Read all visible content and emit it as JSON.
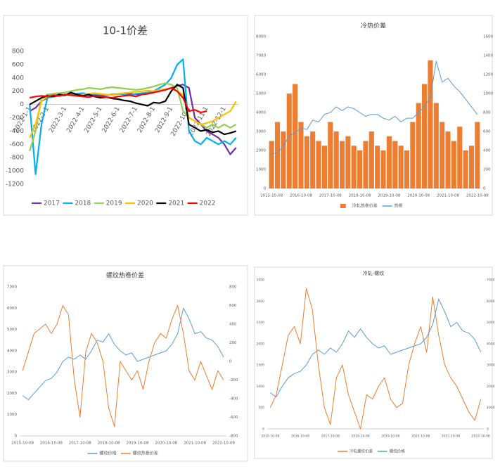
{
  "chart_data": [
    {
      "type": "line",
      "title": "10-1价差",
      "categories": [
        "2022-1-1",
        null,
        null,
        "2022-2-1",
        null,
        null,
        "2022-3-1",
        null,
        null,
        "2022-4-1",
        null,
        null,
        "2022-5-1",
        null,
        null,
        "2022-6-1",
        null,
        null,
        "2022-7-1",
        null,
        null,
        "2022-8-1",
        null,
        null,
        "2022-9-1",
        null,
        null,
        "2022-10-1",
        null,
        null,
        "2022-11-1",
        null,
        null,
        "2022-12-1",
        null,
        null
      ],
      "ylim": [
        -1200,
        800
      ],
      "yticks": [
        -1200,
        -1000,
        -800,
        -600,
        -400,
        -200,
        0,
        200,
        400,
        600,
        800
      ],
      "grid": false,
      "legend": "bottom",
      "series": [
        {
          "name": "2017",
          "color": "#7030a0",
          "values": [
            -100,
            -50,
            50,
            100,
            120,
            130,
            140,
            150,
            160,
            150,
            140,
            150,
            130,
            140,
            150,
            160,
            170,
            160,
            150,
            160,
            170,
            180,
            200,
            220,
            250,
            280,
            300,
            250,
            -200,
            -300,
            -400,
            -450,
            -500,
            -600,
            -750,
            -650
          ]
        },
        {
          "name": "2018",
          "color": "#00b0f0",
          "values": [
            0,
            -1050,
            -300,
            100,
            120,
            130,
            140,
            150,
            160,
            170,
            150,
            160,
            150,
            140,
            150,
            160,
            150,
            140,
            160,
            170,
            180,
            200,
            250,
            300,
            400,
            600,
            680,
            -400,
            -550,
            -600,
            -500,
            -550,
            -600,
            -550,
            -600,
            -500
          ]
        },
        {
          "name": "2019",
          "color": "#92d050",
          "values": [
            -700,
            -400,
            100,
            150,
            160,
            170,
            180,
            200,
            220,
            230,
            250,
            240,
            230,
            250,
            260,
            250,
            240,
            230,
            220,
            230,
            250,
            270,
            300,
            320,
            300,
            250,
            -100,
            -200,
            -250,
            -300,
            -350,
            -300,
            -350,
            -300,
            -350,
            -300
          ]
        },
        {
          "name": "2020",
          "color": "#ffc000",
          "values": [
            -500,
            -300,
            50,
            120,
            130,
            140,
            150,
            140,
            130,
            150,
            160,
            170,
            160,
            150,
            140,
            160,
            170,
            180,
            190,
            200,
            210,
            200,
            220,
            230,
            240,
            200,
            150,
            -200,
            -250,
            -300,
            -280,
            -250,
            -200,
            -150,
            -100,
            50
          ]
        },
        {
          "name": "2021",
          "color": "#000000",
          "values": [
            0,
            50,
            100,
            130,
            120,
            150,
            140,
            180,
            150,
            130,
            150,
            120,
            100,
            110,
            90,
            80,
            60,
            50,
            20,
            0,
            -20,
            30,
            20,
            50,
            200,
            300,
            250,
            -300,
            -350,
            -400,
            -380,
            -420,
            -400,
            -450,
            -430,
            -400
          ]
        },
        {
          "name": "2022",
          "color": "#ff0000",
          "values": [
            100,
            120,
            130,
            120,
            140,
            130,
            150,
            140,
            130,
            120,
            110,
            130,
            120,
            110,
            100,
            120,
            130,
            140,
            120,
            150,
            160,
            180,
            200,
            220,
            250,
            200,
            100,
            -100,
            -80,
            -120,
            -100,
            null,
            null,
            null,
            null,
            null
          ]
        }
      ]
    },
    {
      "type": "combo",
      "title": "冷热价差",
      "categories": [
        "2015-10-08",
        null,
        null,
        null,
        null,
        "2016-10-08",
        null,
        null,
        null,
        null,
        "2017-10-08",
        null,
        null,
        null,
        null,
        "2018-10-08",
        null,
        null,
        null,
        null,
        "2019-10-08",
        null,
        null,
        null,
        null,
        "2020-10-08",
        null,
        null,
        null,
        null,
        "2021-10-08",
        null,
        null,
        null,
        null,
        "2022-10-08"
      ],
      "ylim": [
        0,
        8000
      ],
      "yticks": [
        0,
        1000,
        2000,
        3000,
        4000,
        5000,
        6000,
        7000,
        8000
      ],
      "y2lim": [
        0,
        1600
      ],
      "y2ticks": [
        0,
        200,
        400,
        600,
        800,
        1000,
        1200,
        1400,
        1600
      ],
      "grid": false,
      "legend": "bottom",
      "series": [
        {
          "name": "冷轧热卷价差",
          "kind": "bar",
          "axis": "y2",
          "color": "#ed7d31",
          "values": [
            500,
            700,
            600,
            1000,
            1100,
            700,
            550,
            600,
            500,
            450,
            700,
            600,
            500,
            550,
            450,
            400,
            500,
            600,
            450,
            400,
            550,
            500,
            450,
            400,
            700,
            900,
            1100,
            1350,
            900,
            700,
            600,
            500,
            650,
            400,
            450,
            700
          ]
        },
        {
          "name": "热卷",
          "kind": "line",
          "color": "#5b9bd5",
          "values": [
            1800,
            1900,
            2200,
            2800,
            2900,
            3200,
            3100,
            3600,
            3500,
            3900,
            4000,
            4300,
            4100,
            4300,
            4200,
            4000,
            3800,
            3900,
            3900,
            3700,
            3600,
            3800,
            3500,
            3700,
            3700,
            4000,
            4300,
            4800,
            6700,
            5600,
            5800,
            5400,
            5100,
            4700,
            4300,
            3900
          ]
        }
      ]
    },
    {
      "type": "line",
      "title": "螺纹热卷价差",
      "categories": [
        "2015-10-08",
        null,
        null,
        null,
        null,
        "2016-10-08",
        null,
        null,
        null,
        null,
        "2017-10-08",
        null,
        null,
        null,
        null,
        "2018-10-08",
        null,
        null,
        null,
        null,
        "2019-10-08",
        null,
        null,
        null,
        null,
        "2020-10-08",
        null,
        null,
        null,
        null,
        "2021-10-08",
        null,
        null,
        null,
        null,
        "2022-10-08"
      ],
      "ylim": [
        0,
        7000
      ],
      "yticks": [
        0,
        1000,
        2000,
        3000,
        4000,
        5000,
        6000,
        7000
      ],
      "y2lim": [
        -800,
        800
      ],
      "y2ticks": [
        -800,
        -600,
        -400,
        -200,
        0,
        200,
        400,
        600,
        800
      ],
      "grid": false,
      "legend": "bottom",
      "series": [
        {
          "name": "螺纹价格",
          "color": "#5b9bd5",
          "values": [
            1900,
            1700,
            2000,
            2300,
            2600,
            2700,
            3000,
            3500,
            3700,
            3600,
            3800,
            3600,
            4000,
            4500,
            4400,
            4800,
            4300,
            4000,
            3800,
            3900,
            3500,
            3600,
            3700,
            3800,
            3900,
            4000,
            4300,
            4800,
            6000,
            5500,
            4800,
            4900,
            4600,
            4500,
            4200,
            3700
          ]
        },
        {
          "name": "螺纹热卷价差",
          "axis": "y2",
          "color": "#ed7d31",
          "values": [
            -100,
            100,
            300,
            350,
            400,
            300,
            400,
            600,
            500,
            -200,
            -600,
            100,
            300,
            200,
            0,
            -500,
            -700,
            0,
            -100,
            -200,
            -100,
            -300,
            0,
            200,
            300,
            250,
            450,
            600,
            300,
            -100,
            -200,
            0,
            -150,
            -300,
            -100,
            -200
          ]
        }
      ]
    },
    {
      "type": "line",
      "title": "冷轧-螺纹",
      "categories": [
        "2015-10-08",
        null,
        null,
        null,
        null,
        "2016-10-08",
        null,
        null,
        null,
        null,
        "2017-10-08",
        null,
        null,
        null,
        null,
        "2018-10-08",
        null,
        null,
        null,
        null,
        "2019-10-08",
        null,
        null,
        null,
        null,
        "2020-10-08",
        null,
        null,
        null,
        null,
        "2021-10-08",
        null,
        null,
        null,
        null,
        "2022-10-08"
      ],
      "ylim": [
        0,
        3500
      ],
      "yticks": [
        0,
        500,
        1000,
        1500,
        2000,
        2500,
        3000,
        3500
      ],
      "y2lim": [
        0,
        7000
      ],
      "y2ticks": [
        0,
        1000,
        2000,
        3000,
        4000,
        5000,
        6000,
        7000
      ],
      "grid": false,
      "legend": "bottom",
      "series": [
        {
          "name": "冷轧螺纹价差",
          "color": "#ed7d31",
          "values": [
            500,
            800,
            1500,
            2200,
            2400,
            2000,
            3300,
            2800,
            1500,
            500,
            100,
            1200,
            1500,
            800,
            400,
            0,
            800,
            700,
            1000,
            1200,
            700,
            500,
            600,
            1500,
            2000,
            2400,
            1800,
            3100,
            2200,
            1500,
            1200,
            1000,
            700,
            400,
            200,
            700
          ]
        },
        {
          "name": "螺纹价格",
          "axis": "y2",
          "color": "#5b9bd5",
          "values": [
            1700,
            1500,
            2000,
            2400,
            2600,
            2700,
            3000,
            3500,
            3700,
            3500,
            3800,
            3600,
            4000,
            4600,
            4300,
            4700,
            4300,
            4000,
            3800,
            3900,
            3500,
            3600,
            3700,
            3800,
            3900,
            4000,
            4300,
            4900,
            6100,
            5500,
            4800,
            5000,
            4600,
            4500,
            4200,
            3600
          ]
        }
      ]
    }
  ]
}
